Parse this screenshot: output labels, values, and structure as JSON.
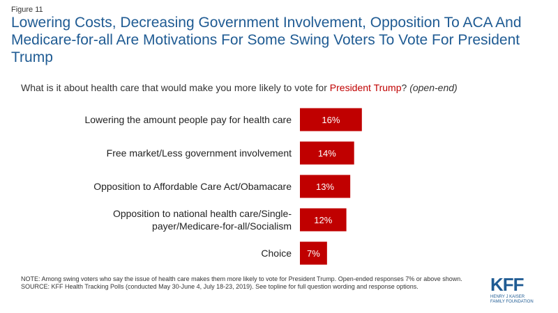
{
  "figure_label": "Figure 11",
  "title": "Lowering Costs, Decreasing Government Involvement, Opposition To ACA And Medicare-for-all Are Motivations For Some Swing Voters To Vote For President Trump",
  "question": {
    "before": "What is it about health care that would make you more likely to vote for ",
    "highlight": "President Trump",
    "after": "? ",
    "italic": "(open-end)"
  },
  "colors": {
    "bar": "#c00000",
    "title": "#1f5b93",
    "highlight": "#c00000"
  },
  "chart_data": {
    "type": "bar",
    "orientation": "horizontal",
    "categories": [
      "Lowering the amount people pay for health care",
      "Free market/Less government involvement",
      "Opposition to Affordable Care Act/Obamacare",
      [
        "Opposition to national health care/Single-",
        "payer/Medicare-for-all/Socialism"
      ],
      "Choice"
    ],
    "values": [
      16,
      14,
      13,
      12,
      7
    ],
    "data_labels": [
      "16%",
      "14%",
      "13%",
      "12%",
      "7%"
    ],
    "xlim": [
      0,
      100
    ],
    "grid": false
  },
  "notes": {
    "note": "NOTE: Among swing voters who say the issue of health care makes them more likely to vote for President Trump. Open-ended responses 7% or above shown.",
    "source": "SOURCE: KFF Health Tracking Polls (conducted May 30-June 4, July 18-23, 2019). See topline for full question wording and response options."
  },
  "logo": {
    "main": "KFF",
    "sub": [
      "HENRY J KAISER",
      "FAMILY FOUNDATION"
    ]
  }
}
